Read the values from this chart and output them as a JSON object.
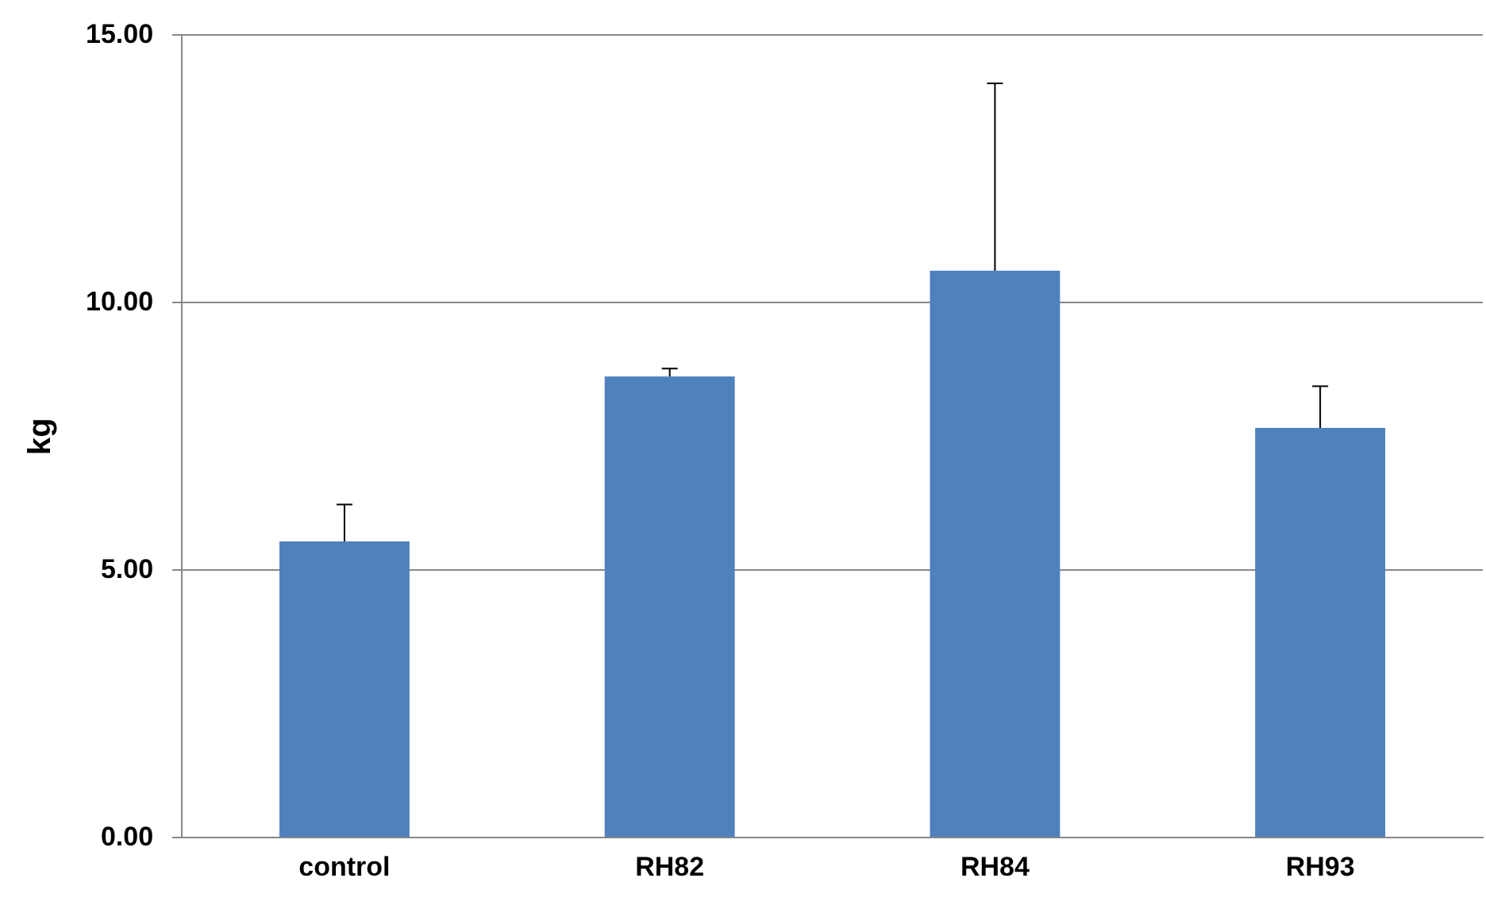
{
  "chart_data": {
    "type": "bar",
    "ylabel": "kg",
    "categories": [
      "control",
      "RH82",
      "RH84",
      "RH93"
    ],
    "values": [
      5.54,
      8.62,
      10.6,
      7.66
    ],
    "errors": [
      [
        5.54,
        6.23
      ],
      [
        8.62,
        8.77
      ],
      [
        10.6,
        14.1
      ],
      [
        7.66,
        8.44
      ]
    ],
    "color": "#4f81bd",
    "ylim": [
      0,
      15
    ],
    "yticks": [
      {
        "value": 0,
        "label": "0.00"
      },
      {
        "value": 5,
        "label": "5.00"
      },
      {
        "value": 10,
        "label": "10.00"
      },
      {
        "value": 15,
        "label": "15.00"
      }
    ],
    "grid": "y",
    "legend": false
  }
}
